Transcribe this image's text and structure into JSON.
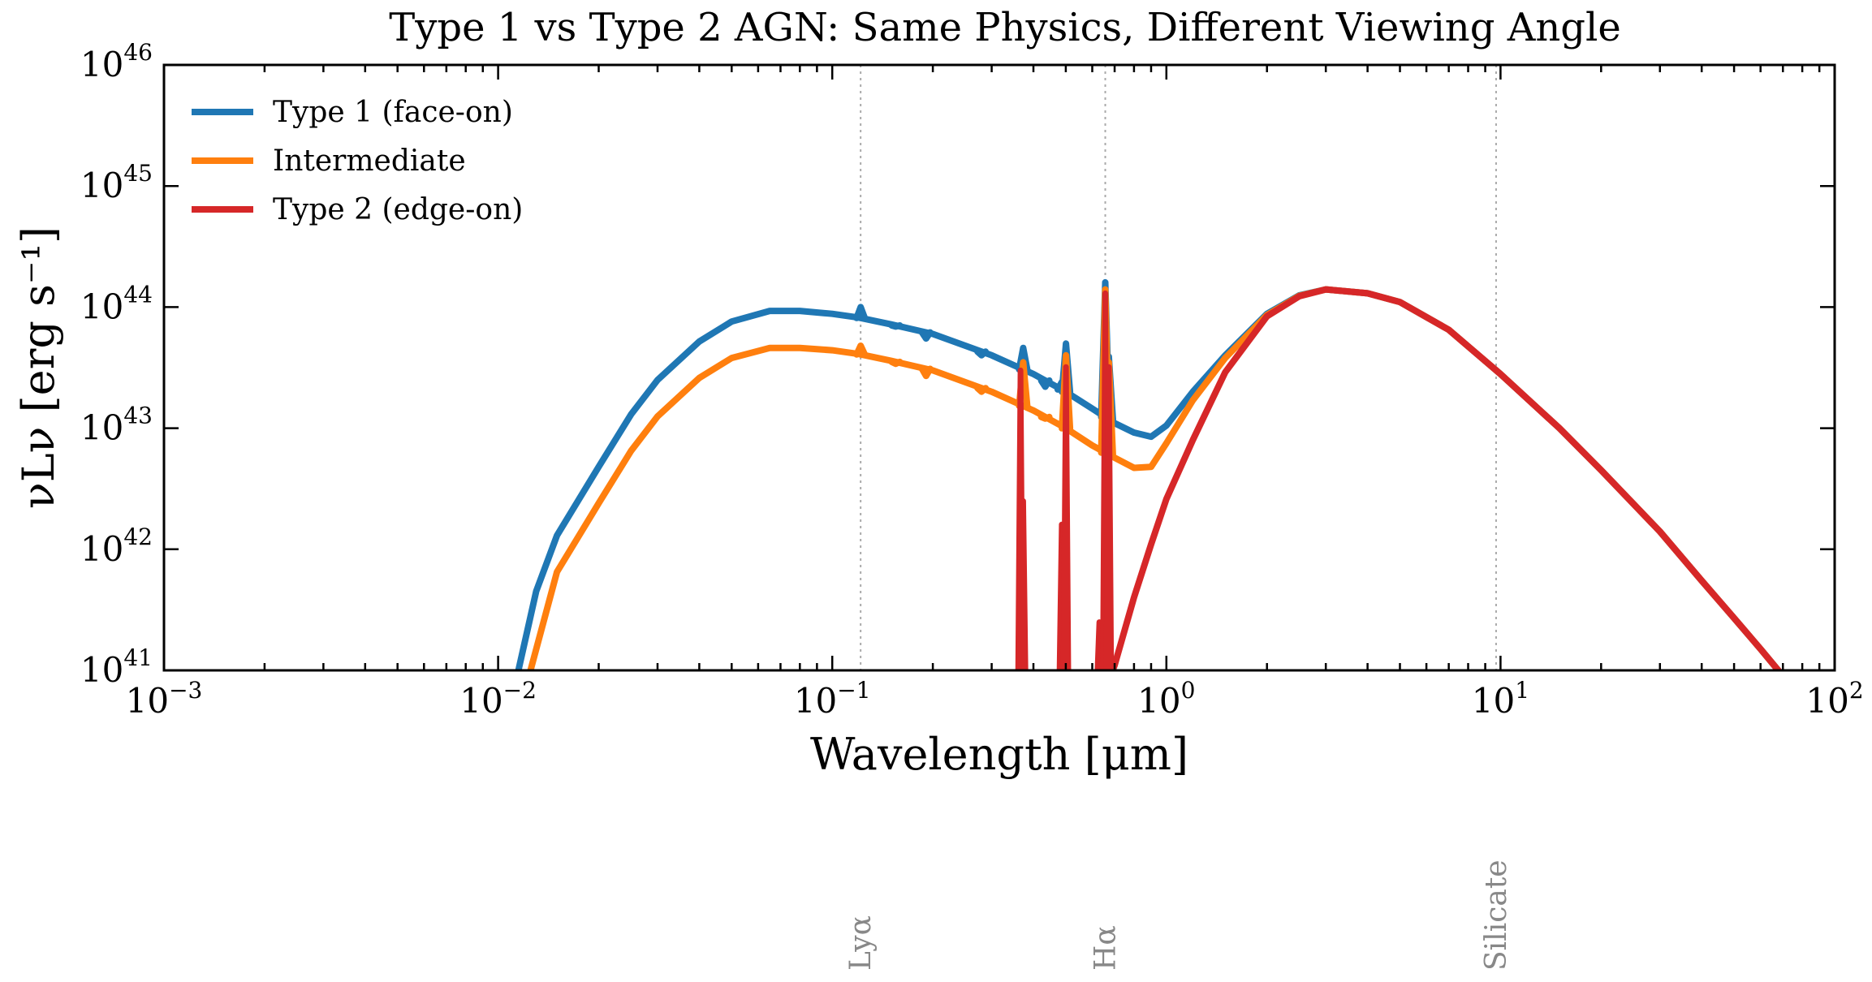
{
  "chart_data": {
    "type": "line",
    "title": "Type 1 vs Type 2 AGN: Same Physics, Different Viewing Angle",
    "xlabel": "Wavelength [μm]",
    "ylabel": "νLν [erg s⁻¹]",
    "xscale": "log",
    "yscale": "log",
    "xlim": [
      0.001,
      100
    ],
    "ylim": [
      1e+41,
      1e+46
    ],
    "x_ticks": [
      {
        "value": 0.001,
        "base": "10",
        "exp": "−3"
      },
      {
        "value": 0.01,
        "base": "10",
        "exp": "−2"
      },
      {
        "value": 0.1,
        "base": "10",
        "exp": "−1"
      },
      {
        "value": 1,
        "base": "10",
        "exp": "0"
      },
      {
        "value": 10,
        "base": "10",
        "exp": "1"
      },
      {
        "value": 100,
        "base": "10",
        "exp": "2"
      }
    ],
    "y_ticks": [
      {
        "value": 1e+41,
        "base": "10",
        "exp": "41"
      },
      {
        "value": 1e+42,
        "base": "10",
        "exp": "42"
      },
      {
        "value": 1e+43,
        "base": "10",
        "exp": "43"
      },
      {
        "value": 1e+44,
        "base": "10",
        "exp": "44"
      },
      {
        "value": 1e+45,
        "base": "10",
        "exp": "45"
      },
      {
        "value": 1e+46,
        "base": "10",
        "exp": "46"
      }
    ],
    "grid": false,
    "legend_position": "top-left",
    "reference_lines": [
      {
        "label": "Lyα",
        "x": 0.1216
      },
      {
        "label": "Hα",
        "x": 0.6563
      },
      {
        "label": "Silicate",
        "x": 9.7
      }
    ],
    "series": [
      {
        "name": "Type 1 (face-on)",
        "color": "#1f77b4",
        "points": [
          [
            0.0115,
            1e+41
          ],
          [
            0.013,
            4.5e+41
          ],
          [
            0.015,
            1.3e+42
          ],
          [
            0.02,
            4.8e+42
          ],
          [
            0.025,
            1.3e+43
          ],
          [
            0.03,
            2.5e+43
          ],
          [
            0.04,
            5.2e+43
          ],
          [
            0.05,
            7.6e+43
          ],
          [
            0.065,
            9.3e+43
          ],
          [
            0.08,
            9.3e+43
          ],
          [
            0.1,
            8.8e+43
          ],
          [
            0.12,
            8.2e+43
          ],
          [
            0.15,
            7.2e+43
          ],
          [
            0.2,
            6e+43
          ],
          [
            0.3,
            4e+43
          ],
          [
            0.4,
            2.8e+43
          ],
          [
            0.5,
            2e+43
          ],
          [
            0.6,
            1.45e+43
          ],
          [
            0.7,
            1.1e+43
          ],
          [
            0.8,
            9.2e+42
          ],
          [
            0.9,
            8.5e+42
          ],
          [
            1.0,
            1.05e+43
          ],
          [
            1.2,
            2e+43
          ],
          [
            1.5,
            4e+43
          ],
          [
            2.0,
            8.8e+43
          ],
          [
            2.5,
            1.25e+44
          ],
          [
            3.0,
            1.4e+44
          ],
          [
            4.0,
            1.3e+44
          ],
          [
            5.0,
            1.1e+44
          ],
          [
            7.0,
            6.5e+43
          ],
          [
            10.0,
            2.8e+43
          ],
          [
            15.0,
            1e+43
          ],
          [
            20.0,
            4.5e+42
          ],
          [
            30.0,
            1.4e+42
          ],
          [
            40.0,
            5.5e+41
          ],
          [
            50.0,
            2.7e+41
          ],
          [
            60.0,
            1.5e+41
          ],
          [
            70.0,
            9e+40
          ]
        ],
        "emission_lines": [
          {
            "x": 0.1216,
            "peak": 1e+44
          },
          {
            "x": 0.1549,
            "peak": 6.9e+43
          },
          {
            "x": 0.1909,
            "peak": 5.5e+43
          },
          {
            "x": 0.2798,
            "peak": 4e+43
          },
          {
            "x": 0.3727,
            "peak": 4.6e+43
          },
          {
            "x": 0.434,
            "peak": 2.2e+43
          },
          {
            "x": 0.4861,
            "peak": 2.4e+43
          },
          {
            "x": 0.5007,
            "peak": 5e+43
          },
          {
            "x": 0.6563,
            "peak": 1.6e+44
          },
          {
            "x": 0.6725,
            "peak": 3.9e+43
          }
        ]
      },
      {
        "name": "Intermediate",
        "color": "#ff7f0e",
        "points": [
          [
            0.0125,
            1e+41
          ],
          [
            0.015,
            6.5e+41
          ],
          [
            0.02,
            2.4e+42
          ],
          [
            0.025,
            6.5e+42
          ],
          [
            0.03,
            1.25e+43
          ],
          [
            0.04,
            2.6e+43
          ],
          [
            0.05,
            3.8e+43
          ],
          [
            0.065,
            4.6e+43
          ],
          [
            0.08,
            4.6e+43
          ],
          [
            0.1,
            4.4e+43
          ],
          [
            0.12,
            4.1e+43
          ],
          [
            0.15,
            3.6e+43
          ],
          [
            0.2,
            3e+43
          ],
          [
            0.3,
            2e+43
          ],
          [
            0.4,
            1.4e+43
          ],
          [
            0.5,
            1e+43
          ],
          [
            0.6,
            7.2e+42
          ],
          [
            0.7,
            5.7e+42
          ],
          [
            0.8,
            4.7e+42
          ],
          [
            0.9,
            4.8e+42
          ],
          [
            1.0,
            7.5e+42
          ],
          [
            1.2,
            1.7e+43
          ],
          [
            1.5,
            3.8e+43
          ],
          [
            2.0,
            8.6e+43
          ],
          [
            2.5,
            1.24e+44
          ],
          [
            3.0,
            1.4e+44
          ],
          [
            4.0,
            1.3e+44
          ],
          [
            5.0,
            1.1e+44
          ],
          [
            7.0,
            6.5e+43
          ],
          [
            10.0,
            2.8e+43
          ],
          [
            15.0,
            1e+43
          ],
          [
            20.0,
            4.5e+42
          ],
          [
            30.0,
            1.4e+42
          ],
          [
            40.0,
            5.5e+41
          ],
          [
            50.0,
            2.7e+41
          ],
          [
            60.0,
            1.5e+41
          ],
          [
            70.0,
            9e+40
          ]
        ],
        "emission_lines": [
          {
            "x": 0.1216,
            "peak": 4.8e+43
          },
          {
            "x": 0.1549,
            "peak": 3.4e+43
          },
          {
            "x": 0.1909,
            "peak": 2.7e+43
          },
          {
            "x": 0.2798,
            "peak": 2e+43
          },
          {
            "x": 0.3727,
            "peak": 3.5e+43
          },
          {
            "x": 0.434,
            "peak": 1.2e+43
          },
          {
            "x": 0.5007,
            "peak": 4e+43
          },
          {
            "x": 0.6563,
            "peak": 1.4e+44
          },
          {
            "x": 0.6725,
            "peak": 3.5e+43
          }
        ]
      },
      {
        "name": "Type 2 (edge-on)",
        "color": "#d62728",
        "points": [
          [
            0.68,
            9e+40
          ],
          [
            0.7,
            1.1e+41
          ],
          [
            0.8,
            4e+41
          ],
          [
            0.9,
            1.1e+42
          ],
          [
            1.0,
            2.6e+42
          ],
          [
            1.2,
            8e+42
          ],
          [
            1.5,
            2.9e+43
          ],
          [
            2.0,
            8.4e+43
          ],
          [
            2.5,
            1.23e+44
          ],
          [
            3.0,
            1.4e+44
          ],
          [
            4.0,
            1.3e+44
          ],
          [
            5.0,
            1.1e+44
          ],
          [
            7.0,
            6.5e+43
          ],
          [
            10.0,
            2.8e+43
          ],
          [
            15.0,
            1e+43
          ],
          [
            20.0,
            4.5e+42
          ],
          [
            30.0,
            1.4e+42
          ],
          [
            40.0,
            5.5e+41
          ],
          [
            50.0,
            2.7e+41
          ],
          [
            60.0,
            1.5e+41
          ],
          [
            70.0,
            9e+40
          ]
        ],
        "emission_lines": [
          {
            "x": 0.366,
            "peak": 3e+43
          },
          {
            "x": 0.3727,
            "peak": 2.5e+42
          },
          {
            "x": 0.4861,
            "peak": 1.6e+42
          },
          {
            "x": 0.5007,
            "peak": 3.2e+43
          },
          {
            "x": 0.63,
            "peak": 2.5e+41
          },
          {
            "x": 0.6563,
            "peak": 1.3e+44
          },
          {
            "x": 0.6725,
            "peak": 3.2e+43
          }
        ]
      }
    ]
  }
}
